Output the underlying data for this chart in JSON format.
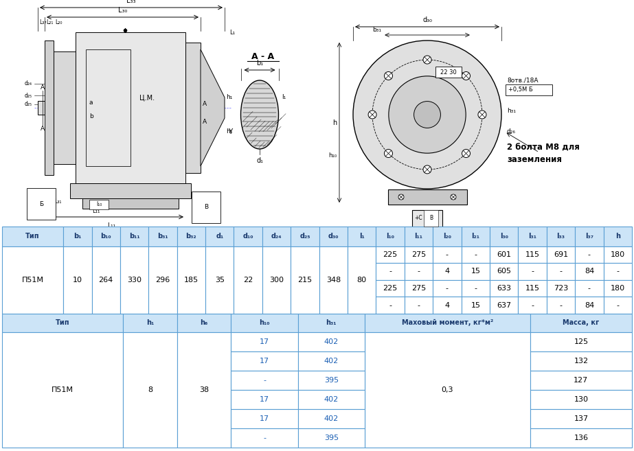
{
  "header_bg": "#cce4f7",
  "header_text": "#1a3a6e",
  "border_color": "#5a9fd4",
  "blue_text": "#1a5fb4",
  "table1_headers": [
    "Тип",
    "b₁",
    "b₁₀",
    "b₁₁",
    "b₃₁",
    "b₃₂",
    "d₁",
    "d₁₀",
    "d₂₄",
    "d₂₅",
    "d₃₀",
    "l₁",
    "l₁₀",
    "l₁₁",
    "l₂₀",
    "l₂₁",
    "l₃₀",
    "l₃₁",
    "l₃₃",
    "l₃₇",
    "h"
  ],
  "table1_type": "П51М",
  "table1_fixed": [
    "10",
    "264",
    "330",
    "296",
    "185",
    "35",
    "22",
    "300",
    "215",
    "348",
    "80"
  ],
  "table1_rows": [
    [
      "225",
      "275",
      "-",
      "-",
      "601",
      "115",
      "691",
      "-",
      "180"
    ],
    [
      "-",
      "-",
      "4",
      "15",
      "605",
      "-",
      "-",
      "84",
      "-"
    ],
    [
      "225",
      "275",
      "-",
      "-",
      "633",
      "115",
      "723",
      "-",
      "180"
    ],
    [
      "-",
      "-",
      "4",
      "15",
      "637",
      "-",
      "-",
      "84",
      "-"
    ]
  ],
  "table2_headers": [
    "Тип",
    "h₁",
    "h₆",
    "h₁₀",
    "h₃₁",
    "Маховый момент, кг*м²",
    "Масса, кг"
  ],
  "table2_type": "П51М",
  "table2_fixed_h1": "8",
  "table2_fixed_h6": "38",
  "table2_mahov": "0,3",
  "table2_rows": [
    [
      "17",
      "402",
      "125"
    ],
    [
      "17",
      "402",
      "132"
    ],
    [
      "-",
      "395",
      "127"
    ],
    [
      "17",
      "402",
      "130"
    ],
    [
      "17",
      "402",
      "137"
    ],
    [
      "-",
      "395",
      "136"
    ]
  ]
}
